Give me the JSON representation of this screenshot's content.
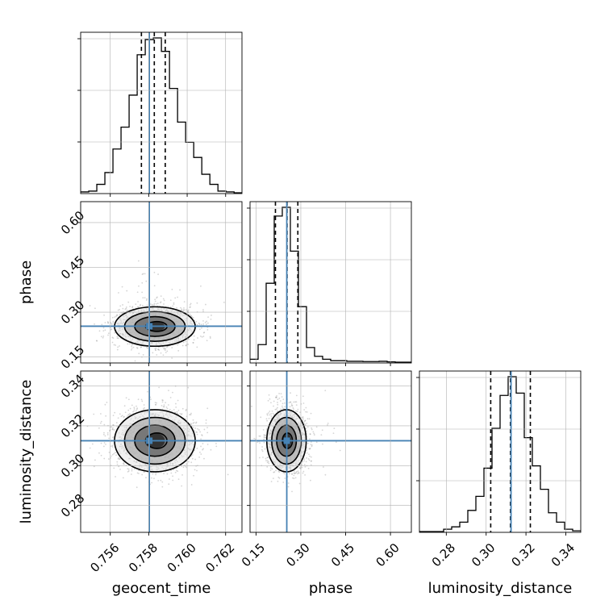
{
  "chart_data": {
    "type": "corner",
    "parameters": [
      "geocent_time",
      "phase",
      "luminosity_distance"
    ],
    "truths": {
      "geocent_time": 0.75803,
      "phase": 0.253,
      "luminosity_distance": 0.3125
    },
    "quantiles": {
      "geocent_time": [
        0.75762,
        0.75829,
        0.75886
      ],
      "phase": [
        0.215,
        0.254,
        0.29
      ],
      "luminosity_distance": [
        0.3023,
        0.3122,
        0.3222
      ]
    },
    "ranges": {
      "geocent_time": [
        0.75446,
        0.76285
      ],
      "phase": [
        0.13,
        0.67
      ],
      "luminosity_distance": [
        0.2665,
        0.3475
      ]
    },
    "ticks": {
      "geocent_time": {
        "values": [
          0.756,
          0.758,
          0.76,
          0.762
        ],
        "labels": [
          "0.756",
          "0.758",
          "0.760",
          "0.762"
        ]
      },
      "phase": {
        "values": [
          0.15,
          0.3,
          0.45,
          0.6
        ],
        "labels": [
          "0.15",
          "0.30",
          "0.45",
          "0.60"
        ]
      },
      "luminosity_distance": {
        "values": [
          0.28,
          0.3,
          0.32,
          0.34
        ],
        "labels": [
          "0.28",
          "0.30",
          "0.32",
          "0.34"
        ]
      }
    },
    "histograms": {
      "geocent_time": {
        "bin_edges": [
          0.75446,
          0.75488,
          0.7553,
          0.75572,
          0.75614,
          0.75656,
          0.75698,
          0.7574,
          0.75782,
          0.75824,
          0.75866,
          0.75908,
          0.7595,
          0.75992,
          0.76034,
          0.76076,
          0.76118,
          0.7616,
          0.76202,
          0.76244,
          0.76285
        ],
        "counts": [
          0.5,
          1,
          5,
          12,
          26,
          39,
          58,
          82,
          91,
          92,
          84,
          62,
          42,
          30,
          21,
          11,
          5,
          1,
          0.5,
          0
        ]
      },
      "phase": {
        "bin_edges": [
          0.13,
          0.157,
          0.184,
          0.211,
          0.238,
          0.265,
          0.292,
          0.319,
          0.346,
          0.373,
          0.4,
          0.427,
          0.454,
          0.481,
          0.508,
          0.535,
          0.562,
          0.589,
          0.616,
          0.643,
          0.67
        ],
        "counts": [
          1,
          6,
          27,
          50,
          53,
          38,
          19,
          5,
          2,
          1,
          0.5,
          0.5,
          0.3,
          0.3,
          0.2,
          0.2,
          0.3,
          0.1,
          0,
          0
        ]
      },
      "luminosity_distance": {
        "bin_edges": [
          0.2665,
          0.27055,
          0.2746,
          0.27865,
          0.2827,
          0.28675,
          0.2908,
          0.29485,
          0.2989,
          0.30295,
          0.307,
          0.31105,
          0.3151,
          0.31915,
          0.3232,
          0.32725,
          0.3313,
          0.33535,
          0.3394,
          0.34345,
          0.3475
        ],
        "counts": [
          0,
          0,
          0,
          1,
          2,
          4,
          9,
          15,
          27,
          44,
          58,
          66,
          59,
          40,
          28,
          18,
          8,
          4,
          1,
          0.3
        ]
      }
    },
    "grid": true
  },
  "labels": {
    "x_bottom": [
      "geocent_time",
      "phase",
      "luminosity_distance"
    ],
    "y_left": [
      "phase",
      "luminosity_distance"
    ]
  },
  "colors": {
    "truth": "#4682b4",
    "contour": "#000000",
    "scatter": "#888888",
    "grid": "#b0b0b0"
  }
}
